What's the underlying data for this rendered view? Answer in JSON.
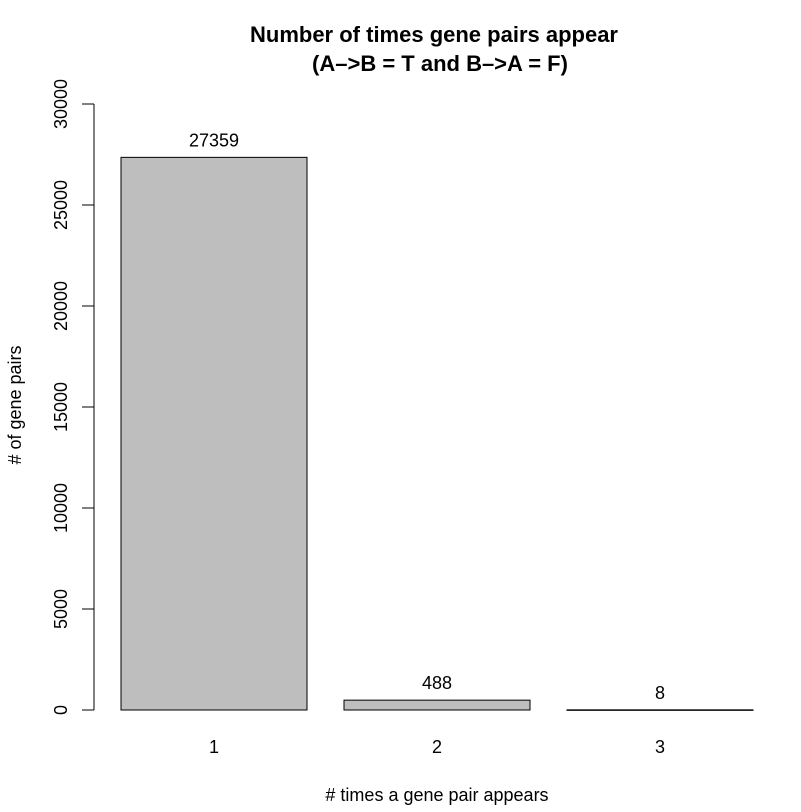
{
  "chart_data": {
    "type": "bar",
    "title": "Number of times gene pairs appear",
    "subtitle": "(A–>B = T and B–>A = F)",
    "xlabel": "# times a gene pair appears",
    "ylabel": "# of gene pairs",
    "categories": [
      "1",
      "2",
      "3"
    ],
    "values": [
      27359,
      488,
      8
    ],
    "data_labels": [
      "27359",
      "488",
      "8"
    ],
    "ylim": [
      0,
      30000
    ],
    "yticks": [
      0,
      5000,
      10000,
      15000,
      20000,
      25000,
      30000
    ],
    "ytick_labels": [
      "0",
      "5000",
      "10000",
      "15000",
      "20000",
      "25000",
      "30000"
    ],
    "grid": false,
    "bar_color": "#bebebe",
    "bar_edge_color": "#000000"
  }
}
